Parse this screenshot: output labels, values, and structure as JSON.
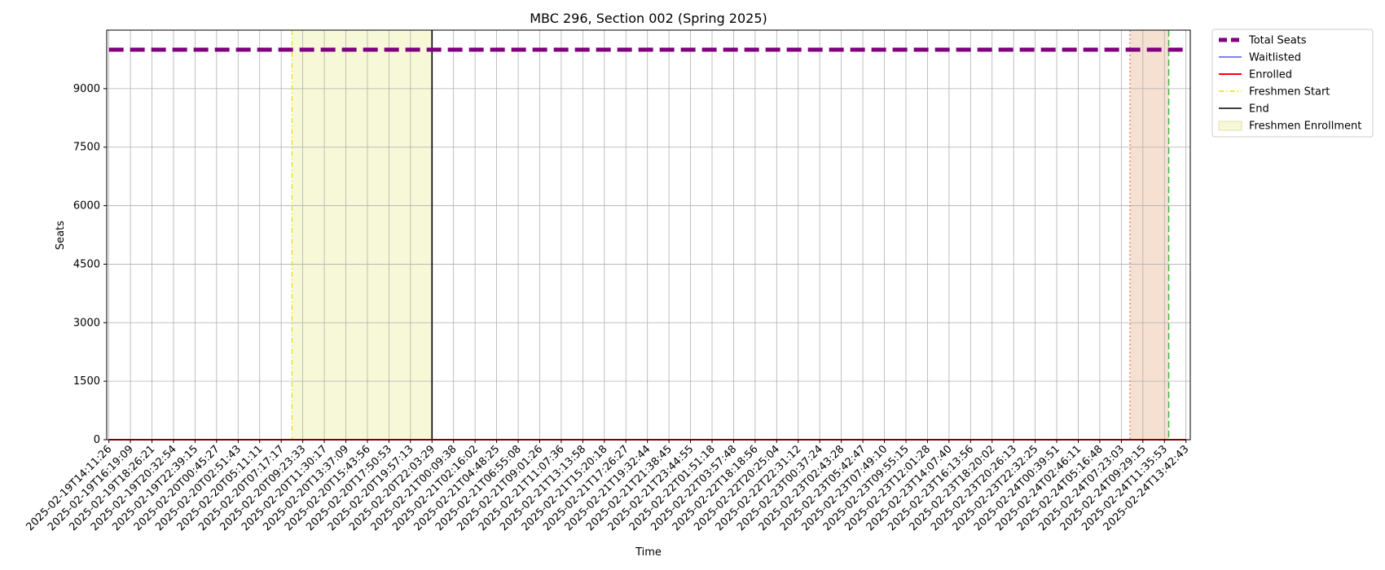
{
  "chart_data": {
    "type": "line",
    "title": "MBC 296, Section 002 (Spring 2025)",
    "xlabel": "Time",
    "ylabel": "Seats",
    "ylim": [
      0,
      10500
    ],
    "yticks": [
      0,
      1500,
      3000,
      4500,
      6000,
      7500,
      9000
    ],
    "grid": true,
    "legend_position": "outside-top-right",
    "x": [
      "2025-02-19T14:11:26",
      "2025-02-19T16:19:09",
      "2025-02-19T18:26:21",
      "2025-02-19T20:32:54",
      "2025-02-19T22:39:15",
      "2025-02-20T00:45:27",
      "2025-02-20T02:51:43",
      "2025-02-20T05:11:11",
      "2025-02-20T07:17:17",
      "2025-02-20T09:23:33",
      "2025-02-20T11:30:17",
      "2025-02-20T13:37:09",
      "2025-02-20T15:43:56",
      "2025-02-20T17:50:53",
      "2025-02-20T19:57:13",
      "2025-02-20T22:03:29",
      "2025-02-21T00:09:38",
      "2025-02-21T02:16:02",
      "2025-02-21T04:48:25",
      "2025-02-21T06:55:08",
      "2025-02-21T09:01:26",
      "2025-02-21T11:07:36",
      "2025-02-21T13:13:58",
      "2025-02-21T15:20:18",
      "2025-02-21T17:26:27",
      "2025-02-21T19:32:44",
      "2025-02-21T21:38:45",
      "2025-02-21T23:44:55",
      "2025-02-22T01:51:18",
      "2025-02-22T03:57:48",
      "2025-02-22T18:18:56",
      "2025-02-22T20:25:04",
      "2025-02-22T22:31:12",
      "2025-02-23T00:37:24",
      "2025-02-23T02:43:28",
      "2025-02-23T05:42:47",
      "2025-02-23T07:49:10",
      "2025-02-23T09:55:15",
      "2025-02-23T12:01:28",
      "2025-02-23T14:07:40",
      "2025-02-23T16:13:56",
      "2025-02-23T18:20:02",
      "2025-02-23T20:26:13",
      "2025-02-23T22:32:25",
      "2025-02-24T00:39:51",
      "2025-02-24T02:46:11",
      "2025-02-24T05:16:48",
      "2025-02-24T07:23:03",
      "2025-02-24T09:29:15",
      "2025-02-24T11:35:53",
      "2025-02-24T13:42:43"
    ],
    "series": [
      {
        "name": "Total Seats",
        "value": 10000,
        "color": "#800080",
        "style": "dashed",
        "width": 5
      },
      {
        "name": "Waitlisted",
        "value": 0,
        "color": "#0000ff",
        "style": "solid",
        "width": 1
      },
      {
        "name": "Enrolled",
        "value": 0,
        "color": "#ff0000",
        "style": "solid",
        "width": 2
      }
    ],
    "markers": [
      {
        "name": "Freshmen Start",
        "at_index": 8.5,
        "color": "#e8e000",
        "style": "dashdot"
      },
      {
        "name": "End",
        "at_index": 15,
        "color": "#000000",
        "style": "solid"
      }
    ],
    "spans": [
      {
        "name": "Freshmen Enrollment",
        "from_index": 8.5,
        "to_index": 15,
        "color": "#f7f8d8"
      }
    ],
    "unlabeled_overlays": {
      "span": {
        "from_index": 47.4,
        "to_index": 49.2,
        "color": "#f6e0d2"
      },
      "span_edge_line": {
        "at_index": 47.4,
        "color": "#e07050",
        "style": "dotted"
      },
      "line": {
        "at_index": 49.2,
        "color": "#33bb33",
        "style": "dashed"
      }
    },
    "x_range_index": [
      -0.1,
      50.2
    ],
    "legend": [
      "Total Seats",
      "Waitlisted",
      "Enrolled",
      "Freshmen Start",
      "End",
      "Freshmen Enrollment"
    ]
  }
}
